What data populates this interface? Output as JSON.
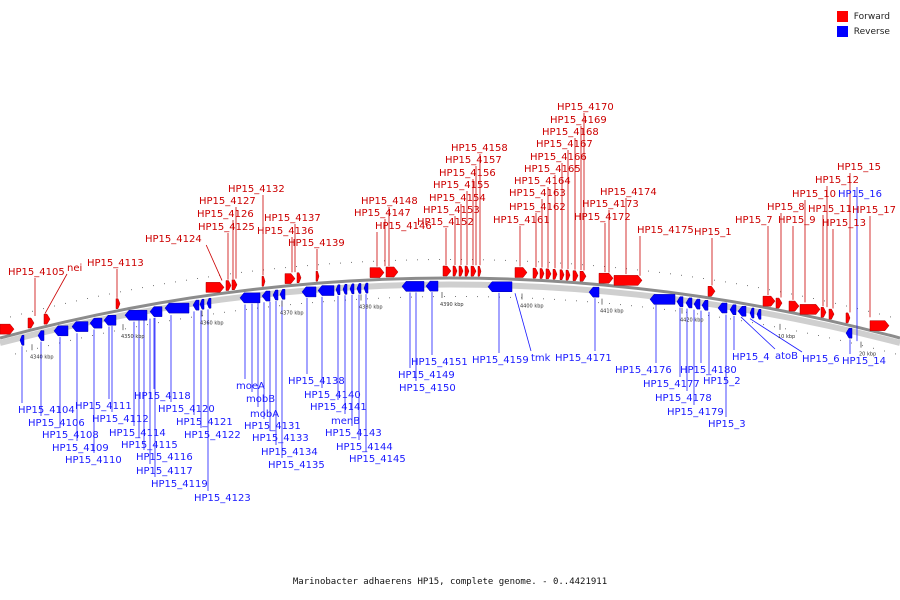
{
  "colors": {
    "forward": "#ff0000",
    "reverse": "#0000ff",
    "forward_label": "#cc0000",
    "reverse_label": "#1a1aff",
    "backbone": "#8c8c8c"
  },
  "legend": {
    "forward": "Forward",
    "reverse": "Reverse"
  },
  "caption": "Marinobacter adhaerens HP15, complete genome. - 0..4421911",
  "scale_ticks": [
    "4340 kbp",
    "4350 kbp",
    "4360 kbp",
    "4370 kbp",
    "4380 kbp",
    "4390 kbp",
    "4400 kbp",
    "4410 kbp",
    "4420 kbp",
    "10 kbp",
    "20 kbp"
  ],
  "forward_genes": [
    "HP15_4105",
    "nei",
    "HP15_4113",
    "HP15_4124",
    "HP15_4125",
    "HP15_4126",
    "HP15_4127",
    "HP15_4132",
    "HP15_4136",
    "HP15_4137",
    "HP15_4139",
    "HP15_4146",
    "HP15_4147",
    "HP15_4148",
    "HP15_4152",
    "HP15_4153",
    "HP15_4154",
    "HP15_4155",
    "HP15_4156",
    "HP15_4157",
    "HP15_4158",
    "HP15_4161",
    "HP15_4162",
    "HP15_4163",
    "HP15_4164",
    "HP15_4165",
    "HP15_4166",
    "HP15_4167",
    "HP15_4168",
    "HP15_4169",
    "HP15_4170",
    "HP15_4172",
    "HP15_4173",
    "HP15_4174",
    "HP15_4175",
    "HP15_1",
    "HP15_7",
    "HP15_8",
    "HP15_9",
    "HP15_10",
    "HP15_11",
    "HP15_12",
    "HP15_13",
    "HP15_15",
    "HP15_17"
  ],
  "reverse_genes": [
    "HP15_4104",
    "HP15_4106",
    "HP15_4108",
    "HP15_4109",
    "HP15_4110",
    "HP15_4111",
    "HP15_4112",
    "HP15_4114",
    "HP15_4115",
    "HP15_4116",
    "HP15_4117",
    "HP15_4118",
    "HP15_4119",
    "HP15_4120",
    "HP15_4121",
    "HP15_4122",
    "HP15_4123",
    "moeA",
    "mobB",
    "mobA",
    "HP15_4131",
    "HP15_4133",
    "HP15_4134",
    "HP15_4135",
    "HP15_4138",
    "HP15_4140",
    "HP15_4141",
    "menB",
    "HP15_4143",
    "HP15_4144",
    "HP15_4145",
    "HP15_4149",
    "HP15_4150",
    "HP15_4151",
    "HP15_4159",
    "tmk",
    "HP15_4171",
    "HP15_4176",
    "HP15_4177",
    "HP15_4178",
    "HP15_4179",
    "HP15_4180",
    "HP15_2",
    "HP15_3",
    "HP15_4",
    "atoB",
    "HP15_6",
    "HP15_14",
    "HP15_16"
  ]
}
